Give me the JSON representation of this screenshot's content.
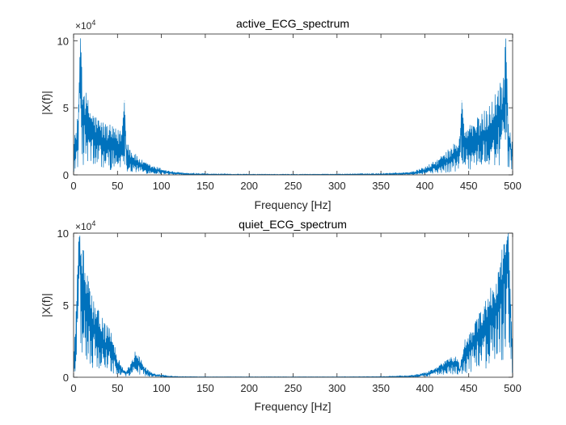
{
  "chart_data": [
    {
      "type": "line",
      "title": "active_ECG_spectrum",
      "xlabel": "Frequency [Hz]",
      "ylabel": "|X(f)|",
      "xlim": [
        0,
        500
      ],
      "ylim": [
        0,
        10.5
      ],
      "xticks": [
        0,
        50,
        100,
        150,
        200,
        250,
        300,
        350,
        400,
        450,
        500
      ],
      "xtick_labels": [
        "0",
        "50",
        "100",
        "150",
        "200",
        "250",
        "300",
        "350",
        "400",
        "450",
        "500"
      ],
      "yticks": [
        0,
        5,
        10
      ],
      "ytick_labels": [
        "0",
        "5",
        "10"
      ],
      "y_exponent_base": "×10",
      "y_exponent_power": "4",
      "color": "#0072BD",
      "series": [
        {
          "name": "|X(f)|",
          "x": [
            0,
            5,
            8,
            10,
            15,
            20,
            25,
            30,
            35,
            40,
            45,
            50,
            55,
            58,
            60,
            65,
            70,
            75,
            80,
            90,
            100,
            110,
            120,
            130,
            150,
            200,
            250,
            300,
            350,
            380,
            390,
            400,
            410,
            420,
            430,
            440,
            442,
            445,
            450,
            455,
            460,
            465,
            470,
            475,
            480,
            485,
            490,
            492,
            495,
            500
          ],
          "y": [
            1.5,
            3.0,
            10.5,
            5.0,
            4.0,
            3.5,
            3.0,
            2.8,
            2.5,
            2.4,
            2.3,
            2.0,
            2.5,
            5.5,
            1.8,
            1.2,
            1.0,
            0.8,
            0.6,
            0.4,
            0.3,
            0.15,
            0.1,
            0.05,
            0.03,
            0.02,
            0.02,
            0.03,
            0.05,
            0.1,
            0.2,
            0.35,
            0.6,
            0.9,
            1.3,
            2.0,
            5.5,
            2.4,
            2.5,
            2.6,
            2.8,
            3.0,
            3.2,
            3.6,
            4.0,
            4.5,
            5.0,
            10.5,
            3.0,
            1.5
          ],
          "envelope_y": [
            2.5,
            4.5,
            10.5,
            7.5,
            6.0,
            5.0,
            4.5,
            4.2,
            4.0,
            3.8,
            3.6,
            3.4,
            3.5,
            5.5,
            2.8,
            2.0,
            1.6,
            1.3,
            1.0,
            0.7,
            0.5,
            0.3,
            0.2,
            0.12,
            0.08,
            0.05,
            0.05,
            0.06,
            0.1,
            0.2,
            0.35,
            0.6,
            1.0,
            1.5,
            2.1,
            3.0,
            5.5,
            3.6,
            3.8,
            4.0,
            4.3,
            4.6,
            5.0,
            5.5,
            6.2,
            7.0,
            8.0,
            10.5,
            4.5,
            2.5
          ]
        }
      ]
    },
    {
      "type": "line",
      "title": "quiet_ECG_spectrum",
      "xlabel": "Frequency [Hz]",
      "ylabel": "|X(f)|",
      "xlim": [
        0,
        500
      ],
      "ylim": [
        0,
        10
      ],
      "xticks": [
        0,
        50,
        100,
        150,
        200,
        250,
        300,
        350,
        400,
        450,
        500
      ],
      "xtick_labels": [
        "0",
        "50",
        "100",
        "150",
        "200",
        "250",
        "300",
        "350",
        "400",
        "450",
        "500"
      ],
      "yticks": [
        0,
        5,
        10
      ],
      "ytick_labels": [
        "0",
        "5",
        "10"
      ],
      "y_exponent_base": "×10",
      "y_exponent_power": "4",
      "color": "#0072BD",
      "series": [
        {
          "name": "|X(f)|",
          "x": [
            0,
            3,
            6,
            10,
            15,
            20,
            25,
            30,
            35,
            40,
            45,
            50,
            55,
            60,
            65,
            70,
            75,
            80,
            85,
            90,
            100,
            110,
            120,
            150,
            200,
            250,
            300,
            350,
            380,
            390,
            400,
            410,
            420,
            425,
            430,
            435,
            440,
            445,
            450,
            455,
            460,
            465,
            470,
            475,
            480,
            485,
            490,
            495,
            500
          ],
          "y": [
            0.5,
            3.0,
            10.0,
            6.0,
            5.5,
            4.0,
            3.5,
            3.0,
            2.5,
            2.2,
            1.8,
            1.0,
            0.5,
            0.3,
            0.6,
            1.2,
            1.0,
            0.6,
            0.3,
            0.2,
            0.1,
            0.05,
            0.03,
            0.02,
            0.02,
            0.02,
            0.02,
            0.03,
            0.05,
            0.1,
            0.2,
            0.4,
            0.7,
            0.9,
            1.0,
            1.1,
            0.5,
            1.8,
            2.0,
            2.5,
            3.0,
            3.5,
            4.0,
            4.5,
            5.0,
            6.0,
            7.5,
            10.0,
            0.5
          ],
          "envelope_y": [
            1.5,
            5.0,
            10.0,
            9.5,
            7.5,
            6.0,
            5.0,
            4.5,
            4.0,
            3.5,
            2.8,
            1.5,
            0.8,
            0.5,
            1.0,
            1.8,
            1.5,
            0.9,
            0.5,
            0.3,
            0.15,
            0.08,
            0.05,
            0.03,
            0.03,
            0.03,
            0.03,
            0.05,
            0.1,
            0.2,
            0.35,
            0.6,
            1.0,
            1.2,
            1.4,
            1.5,
            0.9,
            2.6,
            3.0,
            3.6,
            4.2,
            4.8,
            5.5,
            6.2,
            7.0,
            8.0,
            9.5,
            10.0,
            1.5
          ]
        }
      ]
    }
  ]
}
